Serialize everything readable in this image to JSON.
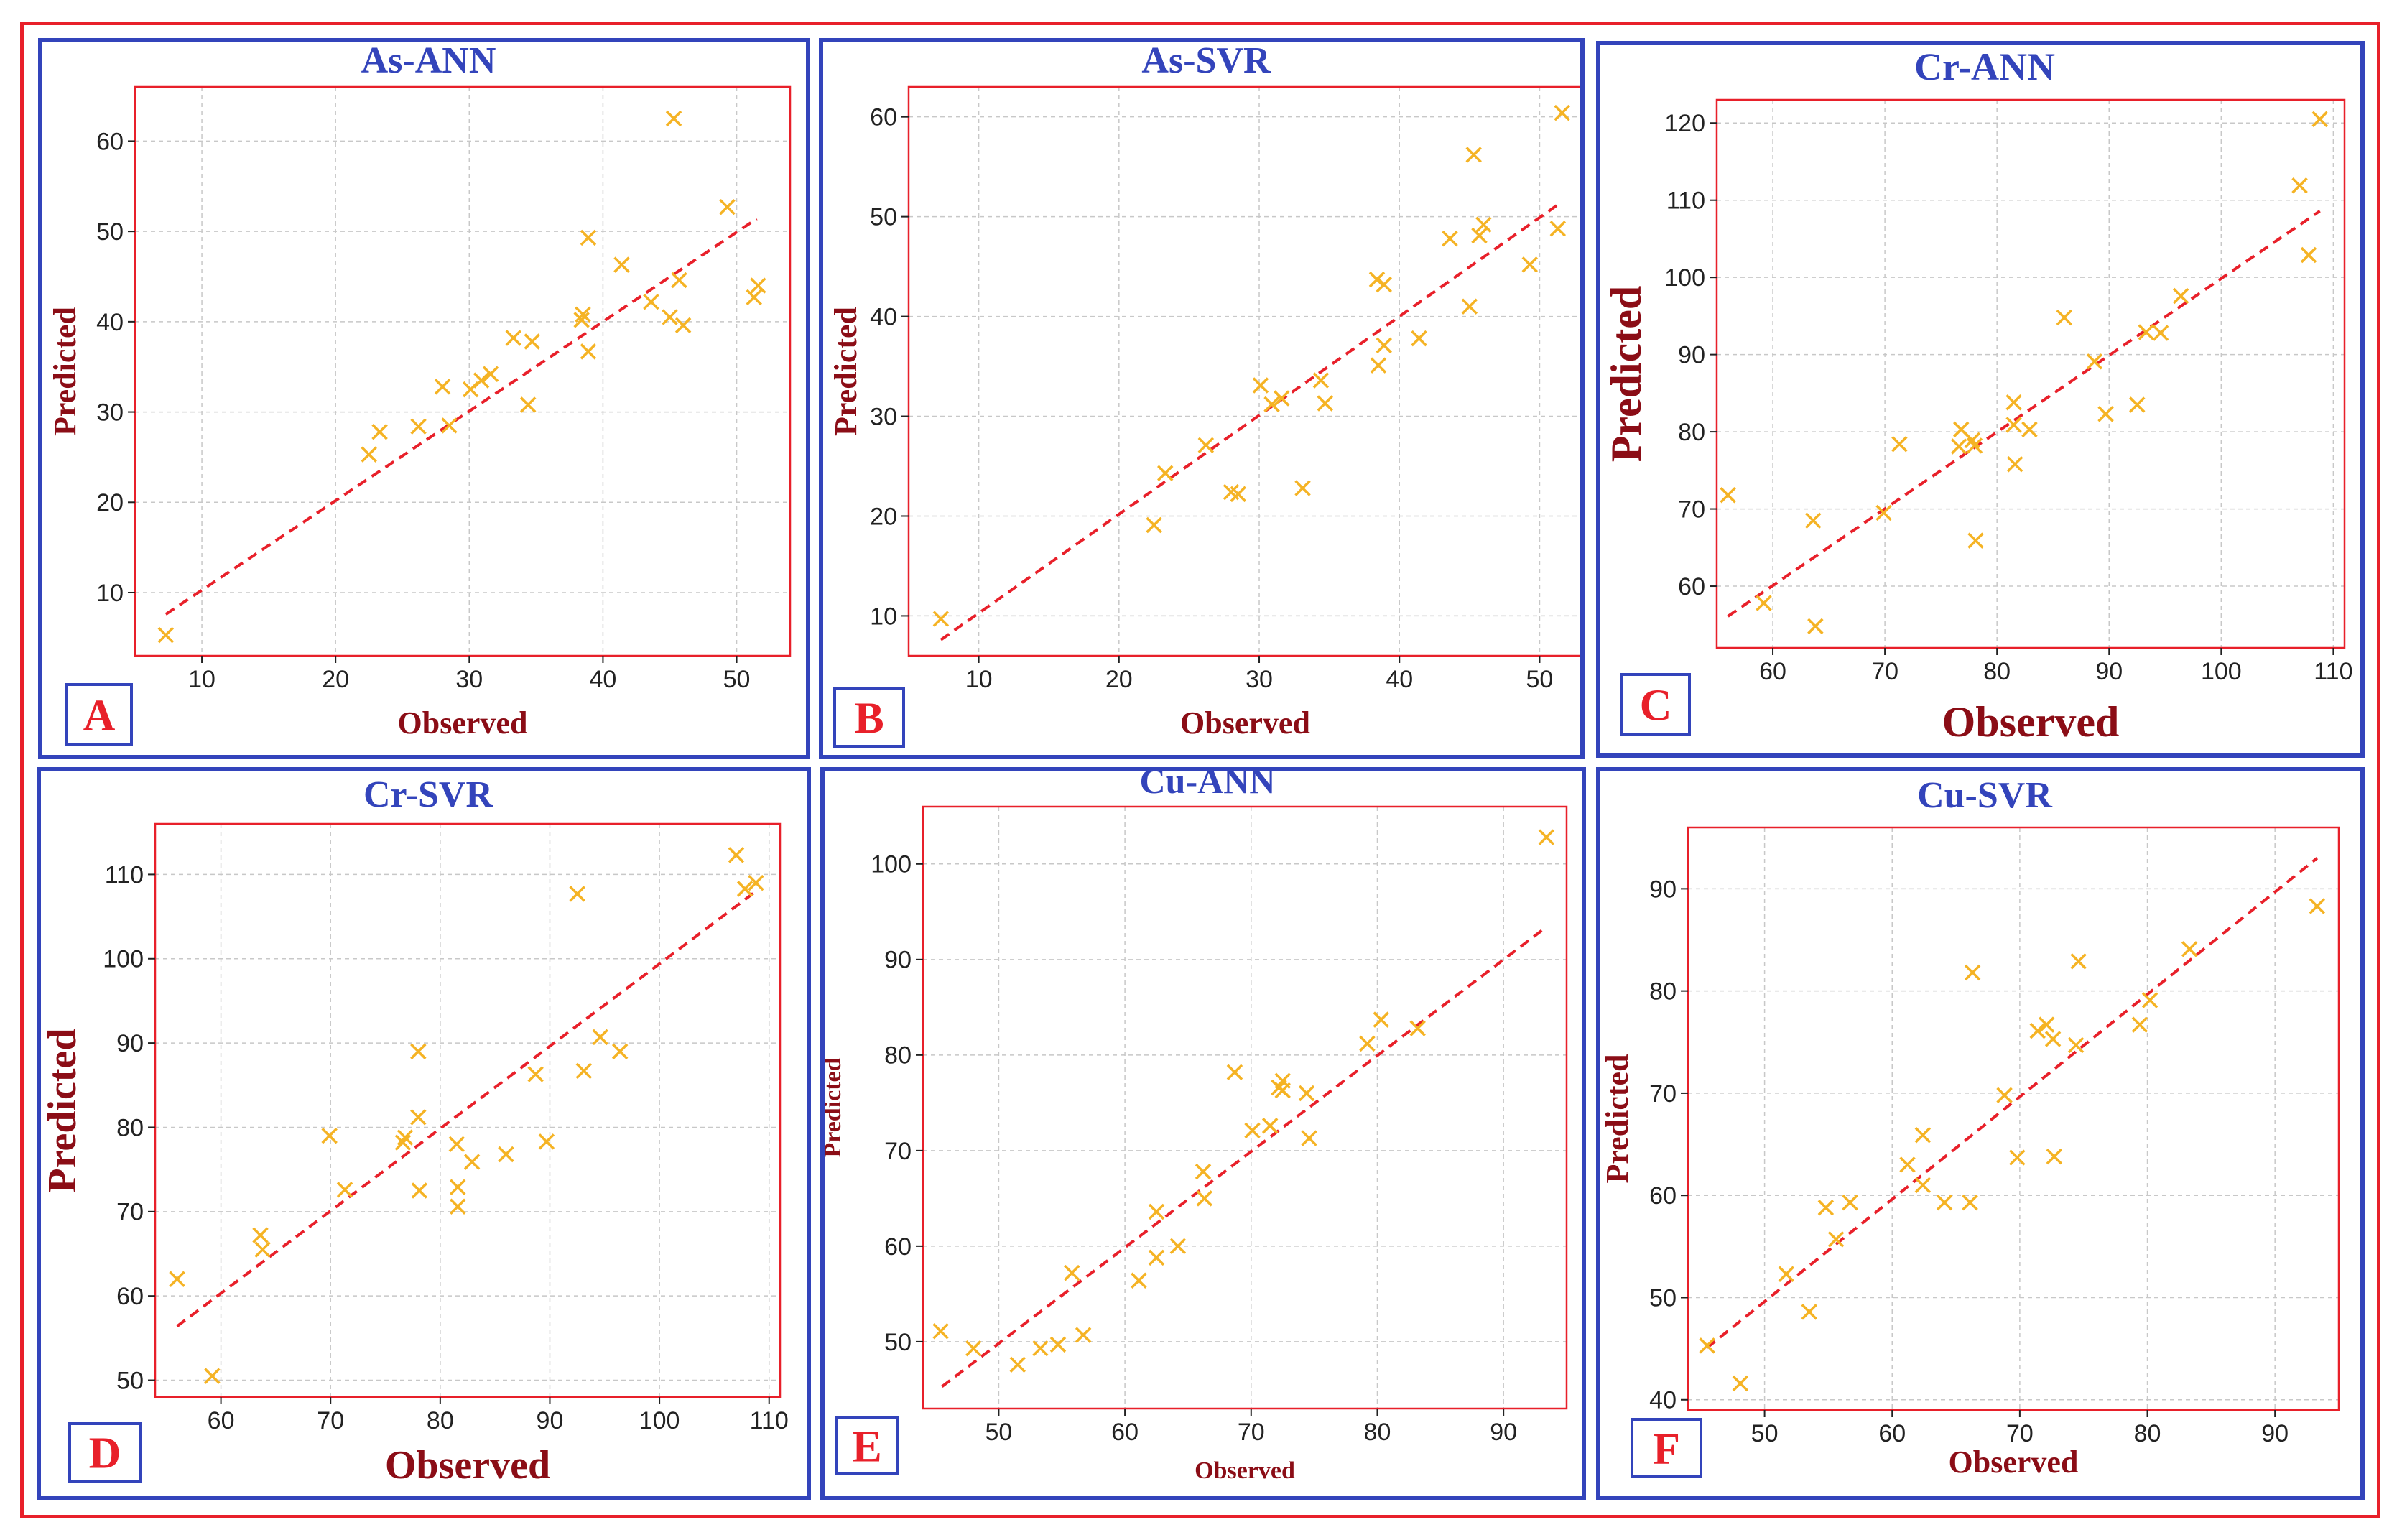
{
  "colors": {
    "frame": "#e8202a",
    "panel_border": "#3344bb",
    "plot_border": "#e8202a",
    "marker": "#f5b324",
    "fit_line": "#e8202a",
    "axis_label": "#8b0d16",
    "title": "#3344bb",
    "letter": "#e8202a"
  },
  "chart_data": [
    {
      "type": "scatter",
      "title": "As-ANN",
      "panel_label": "A",
      "xlabel": "Observed",
      "ylabel": "Predicted",
      "xlim": [
        5,
        54
      ],
      "ylim": [
        3,
        66
      ],
      "xticks": [
        10,
        20,
        30,
        40,
        50
      ],
      "yticks": [
        10,
        20,
        30,
        40,
        50,
        60
      ],
      "grid": true,
      "marker": "x",
      "points": [
        [
          7.3,
          5.3
        ],
        [
          22.5,
          25.3
        ],
        [
          23.3,
          27.8
        ],
        [
          26.2,
          28.4
        ],
        [
          28.0,
          32.8
        ],
        [
          28.5,
          28.5
        ],
        [
          30.1,
          32.5
        ],
        [
          30.9,
          33.5
        ],
        [
          31.6,
          34.2
        ],
        [
          33.3,
          38.2
        ],
        [
          34.4,
          30.8
        ],
        [
          34.7,
          37.8
        ],
        [
          38.4,
          40.2
        ],
        [
          38.5,
          40.8
        ],
        [
          38.9,
          49.3
        ],
        [
          38.9,
          36.7
        ],
        [
          41.4,
          46.3
        ],
        [
          43.6,
          42.2
        ],
        [
          45.0,
          40.5
        ],
        [
          45.3,
          62.5
        ],
        [
          45.7,
          44.6
        ],
        [
          46.0,
          39.6
        ],
        [
          49.3,
          52.7
        ],
        [
          51.3,
          42.7
        ],
        [
          51.6,
          44.0
        ]
      ],
      "fit_line": [
        [
          7.3,
          7.6
        ],
        [
          51.5,
          51.4
        ]
      ]
    },
    {
      "type": "scatter",
      "title": "As-SVR",
      "panel_label": "B",
      "xlabel": "Observed",
      "ylabel": "Predicted",
      "xlim": [
        5,
        53
      ],
      "ylim": [
        6,
        63
      ],
      "xticks": [
        10,
        20,
        30,
        40,
        50
      ],
      "yticks": [
        10,
        20,
        30,
        40,
        50,
        60
      ],
      "grid": true,
      "marker": "x",
      "points": [
        [
          7.3,
          9.7
        ],
        [
          22.5,
          19.1
        ],
        [
          23.3,
          24.3
        ],
        [
          26.2,
          27.1
        ],
        [
          28.0,
          22.4
        ],
        [
          28.5,
          22.2
        ],
        [
          30.1,
          33.1
        ],
        [
          30.9,
          31.2
        ],
        [
          31.6,
          31.8
        ],
        [
          33.1,
          22.8
        ],
        [
          34.4,
          33.6
        ],
        [
          34.7,
          31.3
        ],
        [
          38.4,
          43.7
        ],
        [
          38.5,
          35.1
        ],
        [
          38.9,
          37.1
        ],
        [
          38.9,
          43.2
        ],
        [
          41.4,
          37.8
        ],
        [
          43.6,
          47.8
        ],
        [
          45.0,
          41.0
        ],
        [
          45.3,
          56.2
        ],
        [
          45.7,
          48.1
        ],
        [
          46.0,
          49.2
        ],
        [
          49.3,
          45.2
        ],
        [
          51.3,
          48.8
        ],
        [
          51.6,
          60.4
        ]
      ],
      "fit_line": [
        [
          7.3,
          7.6
        ],
        [
          51.5,
          51.4
        ]
      ]
    },
    {
      "type": "scatter",
      "title": "Cr-ANN",
      "panel_label": "C",
      "xlabel": "Observed",
      "ylabel": "Predicted",
      "xlim": [
        55,
        111
      ],
      "ylim": [
        52,
        123
      ],
      "xticks": [
        60,
        70,
        80,
        90,
        100,
        110
      ],
      "yticks": [
        60,
        70,
        80,
        90,
        100,
        110,
        120
      ],
      "grid": true,
      "marker": "x",
      "points": [
        [
          56.0,
          71.8
        ],
        [
          59.2,
          57.8
        ],
        [
          63.6,
          68.5
        ],
        [
          63.8,
          54.8
        ],
        [
          69.9,
          69.5
        ],
        [
          71.3,
          78.4
        ],
        [
          76.6,
          78.1
        ],
        [
          76.8,
          80.3
        ],
        [
          77.8,
          78.9
        ],
        [
          78.0,
          78.2
        ],
        [
          78.1,
          65.9
        ],
        [
          81.5,
          83.8
        ],
        [
          81.5,
          80.9
        ],
        [
          81.6,
          75.8
        ],
        [
          82.9,
          80.3
        ],
        [
          86.0,
          94.8
        ],
        [
          88.7,
          89.1
        ],
        [
          89.7,
          82.3
        ],
        [
          92.5,
          83.5
        ],
        [
          93.3,
          92.9
        ],
        [
          94.6,
          92.8
        ],
        [
          96.4,
          97.6
        ],
        [
          107.0,
          111.9
        ],
        [
          107.8,
          102.9
        ],
        [
          108.8,
          120.5
        ]
      ],
      "fit_line": [
        [
          56.0,
          56.1
        ],
        [
          108.8,
          108.6
        ]
      ]
    },
    {
      "type": "scatter",
      "title": "Cr-SVR",
      "panel_label": "D",
      "xlabel": "Observed",
      "ylabel": "Predicted",
      "xlim": [
        54,
        111
      ],
      "ylim": [
        48,
        116
      ],
      "xticks": [
        60,
        70,
        80,
        90,
        100,
        110
      ],
      "yticks": [
        50,
        60,
        70,
        80,
        90,
        100,
        110
      ],
      "grid": true,
      "marker": "x",
      "points": [
        [
          56.0,
          62.0
        ],
        [
          59.2,
          50.5
        ],
        [
          63.6,
          67.2
        ],
        [
          63.8,
          65.5
        ],
        [
          69.9,
          79.0
        ],
        [
          71.3,
          72.6
        ],
        [
          76.6,
          78.2
        ],
        [
          76.8,
          78.8
        ],
        [
          78.0,
          81.2
        ],
        [
          78.0,
          89.0
        ],
        [
          78.1,
          72.5
        ],
        [
          81.5,
          78.0
        ],
        [
          81.6,
          72.9
        ],
        [
          81.6,
          70.6
        ],
        [
          82.9,
          75.9
        ],
        [
          86.0,
          76.8
        ],
        [
          88.7,
          86.3
        ],
        [
          89.7,
          78.3
        ],
        [
          92.5,
          107.7
        ],
        [
          93.1,
          86.7
        ],
        [
          94.6,
          90.7
        ],
        [
          96.4,
          89.0
        ],
        [
          107.0,
          112.3
        ],
        [
          107.8,
          108.3
        ],
        [
          108.8,
          109.0
        ]
      ],
      "fit_line": [
        [
          56.0,
          56.4
        ],
        [
          108.8,
          108.0
        ]
      ]
    },
    {
      "type": "scatter",
      "title": "Cu-ANN",
      "panel_label": "E",
      "xlabel": "Observed",
      "ylabel": "Predicted",
      "xlim": [
        44,
        95
      ],
      "ylim": [
        43,
        106
      ],
      "xticks": [
        50,
        60,
        70,
        80,
        90
      ],
      "yticks": [
        50,
        60,
        70,
        80,
        90,
        100
      ],
      "grid": true,
      "marker": "x",
      "points": [
        [
          45.4,
          51.1
        ],
        [
          48.0,
          49.3
        ],
        [
          51.5,
          47.6
        ],
        [
          53.3,
          49.3
        ],
        [
          54.7,
          49.7
        ],
        [
          55.8,
          57.2
        ],
        [
          56.7,
          50.7
        ],
        [
          61.1,
          56.4
        ],
        [
          62.5,
          63.6
        ],
        [
          62.5,
          58.8
        ],
        [
          64.2,
          60.0
        ],
        [
          66.2,
          67.8
        ],
        [
          66.3,
          65.0
        ],
        [
          68.7,
          78.2
        ],
        [
          70.1,
          72.1
        ],
        [
          71.5,
          72.6
        ],
        [
          72.2,
          76.6
        ],
        [
          72.5,
          77.3
        ],
        [
          72.5,
          76.3
        ],
        [
          74.4,
          76.0
        ],
        [
          74.6,
          71.3
        ],
        [
          79.2,
          81.2
        ],
        [
          80.3,
          83.7
        ],
        [
          83.2,
          82.8
        ],
        [
          93.4,
          102.8
        ]
      ],
      "fit_line": [
        [
          45.5,
          45.3
        ],
        [
          93.3,
          93.3
        ]
      ]
    },
    {
      "type": "scatter",
      "title": "Cu-SVR",
      "panel_label": "F",
      "xlabel": "Observed",
      "ylabel": "Predicted",
      "xlim": [
        44,
        95
      ],
      "ylim": [
        39,
        96
      ],
      "xticks": [
        50,
        60,
        70,
        80,
        90
      ],
      "yticks": [
        40,
        50,
        60,
        70,
        80,
        90
      ],
      "grid": true,
      "marker": "x",
      "points": [
        [
          45.5,
          45.3
        ],
        [
          48.1,
          41.6
        ],
        [
          51.7,
          52.3
        ],
        [
          53.5,
          48.6
        ],
        [
          54.8,
          58.8
        ],
        [
          55.6,
          55.7
        ],
        [
          56.7,
          59.3
        ],
        [
          61.2,
          63.0
        ],
        [
          62.4,
          65.9
        ],
        [
          62.4,
          61.0
        ],
        [
          64.1,
          59.3
        ],
        [
          66.1,
          59.3
        ],
        [
          66.3,
          81.8
        ],
        [
          68.8,
          69.8
        ],
        [
          69.8,
          63.7
        ],
        [
          71.4,
          76.1
        ],
        [
          72.1,
          76.7
        ],
        [
          72.6,
          75.3
        ],
        [
          72.7,
          63.8
        ],
        [
          74.4,
          74.7
        ],
        [
          74.6,
          82.9
        ],
        [
          79.4,
          76.7
        ],
        [
          80.2,
          79.1
        ],
        [
          83.3,
          84.1
        ],
        [
          93.3,
          88.3
        ]
      ],
      "fit_line": [
        [
          45.5,
          45.1
        ],
        [
          93.3,
          93.0
        ]
      ]
    }
  ]
}
